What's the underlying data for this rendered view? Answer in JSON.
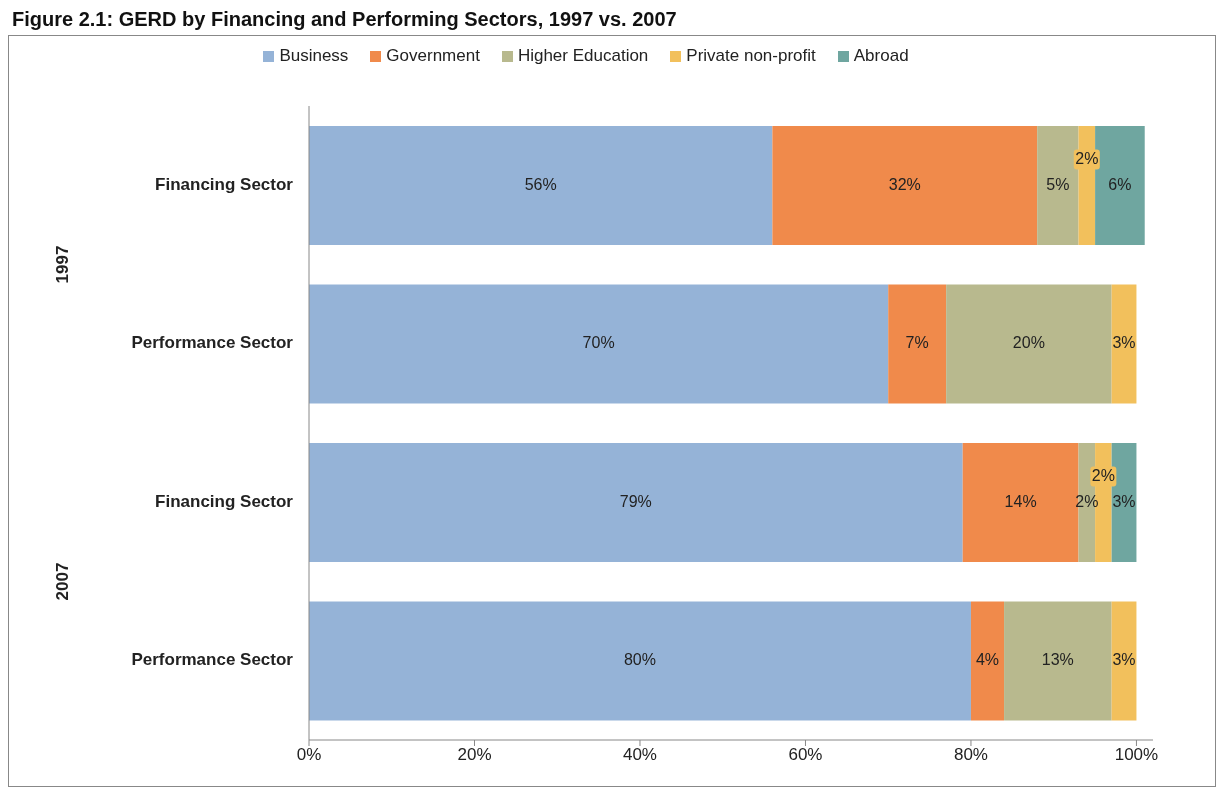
{
  "chart_data": {
    "type": "bar",
    "orientation": "horizontal",
    "stacked": true,
    "title": "Figure 2.1: GERD by Financing and Performing Sectors, 1997 vs. 2007",
    "categories": [
      "Financing Sector",
      "Performance Sector",
      "Financing Sector",
      "Performance Sector"
    ],
    "annotations": [
      "1997",
      "2007"
    ],
    "series": [
      {
        "name": "Business",
        "color": "#95b3d7",
        "values": [
          56,
          70,
          79,
          80
        ],
        "value_labels": [
          "56%",
          "70%",
          "79%",
          "80%"
        ]
      },
      {
        "name": "Government",
        "color": "#f08a4b",
        "values": [
          32,
          7,
          14,
          4
        ],
        "value_labels": [
          "32%",
          "7%",
          "14%",
          "4%"
        ]
      },
      {
        "name": "Higher Education",
        "color": "#b8b98e",
        "values": [
          5,
          20,
          2,
          13
        ],
        "value_labels": [
          "5%",
          "20%",
          "2%",
          "13%"
        ]
      },
      {
        "name": "Private non-profit",
        "color": "#f2c05c",
        "values": [
          2,
          3,
          2,
          3
        ],
        "value_labels": [
          "2%",
          "3%",
          "2%",
          "3%"
        ]
      },
      {
        "name": "Abroad",
        "color": "#6fa6a0",
        "values": [
          6,
          null,
          3,
          null
        ],
        "value_labels": [
          "6%",
          null,
          "3%",
          null
        ]
      }
    ],
    "xlim": [
      0,
      102
    ],
    "xticks": [
      {
        "value": 0,
        "label": "0%"
      },
      {
        "value": 20,
        "label": "20%"
      },
      {
        "value": 40,
        "label": "40%"
      },
      {
        "value": 60,
        "label": "60%"
      },
      {
        "value": 80,
        "label": "80%"
      },
      {
        "value": 100,
        "label": "100%"
      }
    ],
    "legend": "top",
    "grid": false
  }
}
